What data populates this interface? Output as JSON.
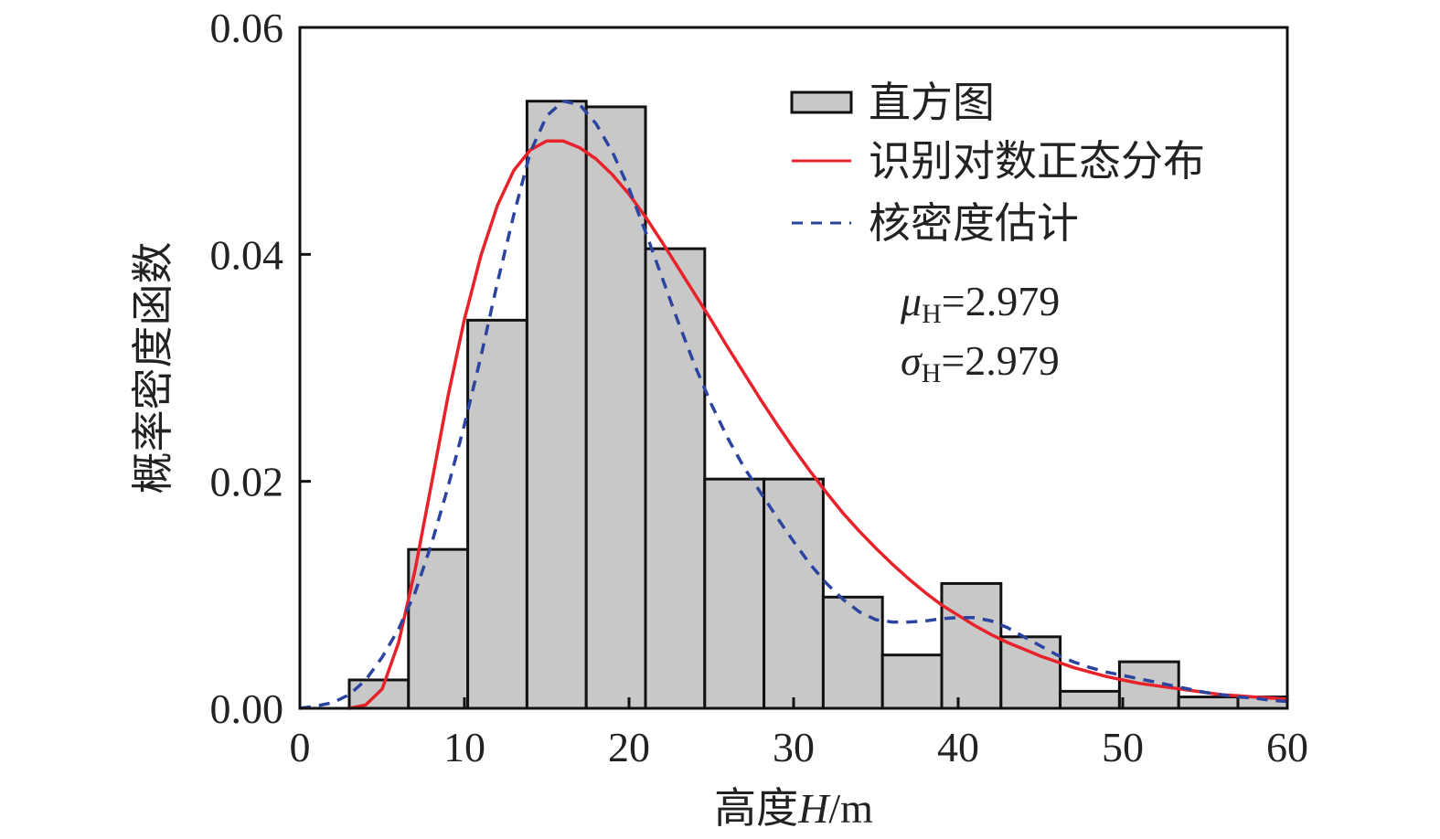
{
  "chart_data": {
    "type": "bar",
    "title": "",
    "xlabel": {
      "prefix": "高度",
      "italic": "H",
      "suffix": "/m"
    },
    "ylabel": "概率密度函数",
    "xlim": [
      0,
      60
    ],
    "ylim": [
      0,
      0.06
    ],
    "x_ticks": [
      0,
      10,
      20,
      30,
      40,
      50,
      60
    ],
    "y_ticks": [
      "0.00",
      "0.02",
      "0.04",
      "0.06"
    ],
    "grid": false,
    "legend_position": "top-right",
    "histogram": {
      "name": "直方图",
      "color": "#c8c8c8",
      "edge_color": "#111111",
      "bins": [
        {
          "x0": 3.0,
          "x1": 6.6,
          "value": 0.0025
        },
        {
          "x0": 6.6,
          "x1": 10.2,
          "value": 0.014
        },
        {
          "x0": 10.2,
          "x1": 13.8,
          "value": 0.0342
        },
        {
          "x0": 13.8,
          "x1": 17.4,
          "value": 0.0535
        },
        {
          "x0": 17.4,
          "x1": 21.0,
          "value": 0.053
        },
        {
          "x0": 21.0,
          "x1": 24.6,
          "value": 0.0405
        },
        {
          "x0": 24.6,
          "x1": 28.2,
          "value": 0.0202
        },
        {
          "x0": 28.2,
          "x1": 31.8,
          "value": 0.0202
        },
        {
          "x0": 31.8,
          "x1": 35.4,
          "value": 0.0098
        },
        {
          "x0": 35.4,
          "x1": 39.0,
          "value": 0.0047
        },
        {
          "x0": 39.0,
          "x1": 42.6,
          "value": 0.011
        },
        {
          "x0": 42.6,
          "x1": 46.2,
          "value": 0.0063
        },
        {
          "x0": 46.2,
          "x1": 49.8,
          "value": 0.0015
        },
        {
          "x0": 49.8,
          "x1": 53.4,
          "value": 0.0041
        },
        {
          "x0": 53.4,
          "x1": 57.0,
          "value": 0.001
        },
        {
          "x0": 57.0,
          "x1": 60.0,
          "value": 0.001
        }
      ]
    },
    "series": [
      {
        "name": "识别对数正态分布",
        "color": "#e8222a",
        "style": "solid",
        "points": [
          [
            3,
            0.0
          ],
          [
            4,
            0.0003
          ],
          [
            5,
            0.0017
          ],
          [
            6,
            0.0058
          ],
          [
            7,
            0.0122
          ],
          [
            8,
            0.0198
          ],
          [
            9,
            0.0275
          ],
          [
            10,
            0.0343
          ],
          [
            11,
            0.0399
          ],
          [
            12,
            0.0443
          ],
          [
            13,
            0.0474
          ],
          [
            14,
            0.0492
          ],
          [
            15,
            0.05
          ],
          [
            16,
            0.05
          ],
          [
            17,
            0.0494
          ],
          [
            18,
            0.0484
          ],
          [
            19,
            0.047
          ],
          [
            20,
            0.0453
          ],
          [
            21,
            0.0433
          ],
          [
            22,
            0.0411
          ],
          [
            23,
            0.0388
          ],
          [
            24,
            0.0365
          ],
          [
            25,
            0.0342
          ],
          [
            26,
            0.0318
          ],
          [
            27,
            0.0295
          ],
          [
            28,
            0.0272
          ],
          [
            29,
            0.025
          ],
          [
            30,
            0.0229
          ],
          [
            31,
            0.0209
          ],
          [
            32,
            0.019
          ],
          [
            33,
            0.0172
          ],
          [
            34,
            0.0156
          ],
          [
            35,
            0.0141
          ],
          [
            36,
            0.0127
          ],
          [
            37,
            0.0114
          ],
          [
            38,
            0.0102
          ],
          [
            39,
            0.0091
          ],
          [
            40,
            0.0082
          ],
          [
            41,
            0.0073
          ],
          [
            42,
            0.0065
          ],
          [
            43,
            0.0058
          ],
          [
            44,
            0.0052
          ],
          [
            45,
            0.0046
          ],
          [
            46,
            0.0041
          ],
          [
            47,
            0.0036
          ],
          [
            48,
            0.0032
          ],
          [
            49,
            0.0028
          ],
          [
            50,
            0.0025
          ],
          [
            51,
            0.0022
          ],
          [
            52,
            0.002
          ],
          [
            53,
            0.0018
          ],
          [
            54,
            0.0016
          ],
          [
            55,
            0.0014
          ],
          [
            56,
            0.0012
          ],
          [
            57,
            0.0011
          ],
          [
            58,
            0.001
          ],
          [
            59,
            0.0009
          ],
          [
            60,
            0.0008
          ]
        ]
      },
      {
        "name": "核密度估计",
        "color": "#2b44a0",
        "style": "dashed",
        "points": [
          [
            0,
            0.0
          ],
          [
            1,
            0.0002
          ],
          [
            2,
            0.0005
          ],
          [
            3,
            0.0012
          ],
          [
            4,
            0.0025
          ],
          [
            5,
            0.0045
          ],
          [
            6,
            0.007
          ],
          [
            7,
            0.0102
          ],
          [
            8,
            0.0145
          ],
          [
            9,
            0.0195
          ],
          [
            10,
            0.025
          ],
          [
            11,
            0.031
          ],
          [
            12,
            0.0375
          ],
          [
            13,
            0.0435
          ],
          [
            14,
            0.049
          ],
          [
            15,
            0.0522
          ],
          [
            16,
            0.0535
          ],
          [
            17,
            0.0532
          ],
          [
            18,
            0.0515
          ],
          [
            19,
            0.049
          ],
          [
            20,
            0.0458
          ],
          [
            21,
            0.042
          ],
          [
            22,
            0.038
          ],
          [
            23,
            0.034
          ],
          [
            24,
            0.0302
          ],
          [
            25,
            0.0268
          ],
          [
            26,
            0.0238
          ],
          [
            27,
            0.0212
          ],
          [
            28,
            0.019
          ],
          [
            29,
            0.0168
          ],
          [
            30,
            0.0147
          ],
          [
            31,
            0.0127
          ],
          [
            32,
            0.011
          ],
          [
            33,
            0.0096
          ],
          [
            34,
            0.0085
          ],
          [
            35,
            0.0078
          ],
          [
            36,
            0.0076
          ],
          [
            37,
            0.0076
          ],
          [
            38,
            0.0077
          ],
          [
            39,
            0.0079
          ],
          [
            40,
            0.008
          ],
          [
            41,
            0.008
          ],
          [
            42,
            0.0077
          ],
          [
            43,
            0.0071
          ],
          [
            44,
            0.0063
          ],
          [
            45,
            0.0055
          ],
          [
            46,
            0.0047
          ],
          [
            47,
            0.0041
          ],
          [
            48,
            0.0036
          ],
          [
            49,
            0.0032
          ],
          [
            50,
            0.0029
          ],
          [
            51,
            0.0026
          ],
          [
            52,
            0.0023
          ],
          [
            53,
            0.002
          ],
          [
            54,
            0.0017
          ],
          [
            55,
            0.0014
          ],
          [
            56,
            0.0012
          ],
          [
            57,
            0.001
          ],
          [
            58,
            0.0009
          ],
          [
            59,
            0.0007
          ],
          [
            60,
            0.0006
          ]
        ]
      }
    ],
    "annotations": [
      {
        "symbol": "μ",
        "subscript": "H",
        "text": "=2.979"
      },
      {
        "symbol": "σ",
        "subscript": "H",
        "text": "=2.979"
      }
    ]
  }
}
